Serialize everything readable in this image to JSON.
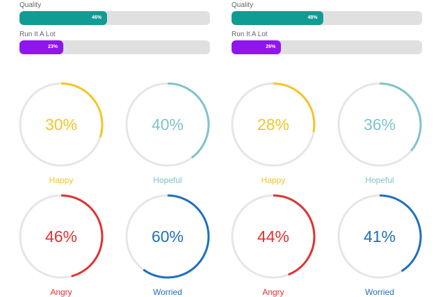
{
  "colors": {
    "track": "#e0e0e0",
    "ring_bg": "#e6e6e6",
    "quality": "#119c93",
    "run": "#8f16ec",
    "happy": "#f5c525",
    "hopeful": "#7fc4cc",
    "angry": "#e03232",
    "worried": "#1e6fbf"
  },
  "bars": [
    {
      "label": "Quality",
      "percent_label": "46%",
      "value": 46,
      "color": "#119c93"
    },
    {
      "label": "Run It A Lot",
      "percent_label": "23%",
      "value": 23,
      "color": "#8f16ec"
    },
    {
      "label": "Quality",
      "percent_label": "48%",
      "value": 48,
      "color": "#119c93"
    },
    {
      "label": "Run It A Lot",
      "percent_label": "26%",
      "value": 26,
      "color": "#8f16ec"
    }
  ],
  "gauges": [
    {
      "value_label": "30%",
      "value": 30,
      "caption": "Happy",
      "color": "#f5c525"
    },
    {
      "value_label": "40%",
      "value": 40,
      "caption": "Hopeful",
      "color": "#7fc4cc"
    },
    {
      "value_label": "28%",
      "value": 28,
      "caption": "Happy",
      "color": "#f5c525"
    },
    {
      "value_label": "36%",
      "value": 36,
      "caption": "Hopeful",
      "color": "#7fc4cc"
    },
    {
      "value_label": "46%",
      "value": 46,
      "caption": "Angry",
      "color": "#e03232"
    },
    {
      "value_label": "60%",
      "value": 60,
      "caption": "Worried",
      "color": "#1e6fbf"
    },
    {
      "value_label": "44%",
      "value": 44,
      "caption": "Angry",
      "color": "#e03232"
    },
    {
      "value_label": "41%",
      "value": 41,
      "caption": "Worried",
      "color": "#1e6fbf"
    }
  ]
}
